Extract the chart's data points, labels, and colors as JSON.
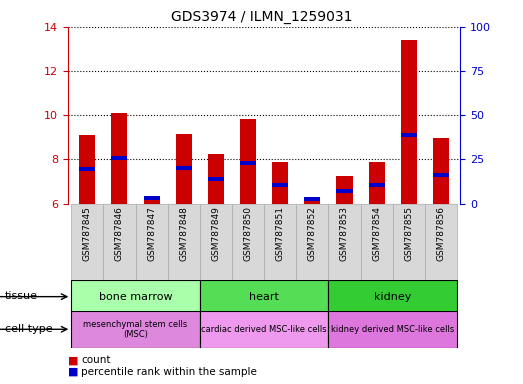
{
  "title": "GDS3974 / ILMN_1259031",
  "samples": [
    "GSM787845",
    "GSM787846",
    "GSM787847",
    "GSM787848",
    "GSM787849",
    "GSM787850",
    "GSM787851",
    "GSM787852",
    "GSM787853",
    "GSM787854",
    "GSM787855",
    "GSM787856"
  ],
  "count_values": [
    9.1,
    10.1,
    6.35,
    9.15,
    8.25,
    9.85,
    7.9,
    6.2,
    7.25,
    7.9,
    13.4,
    8.95
  ],
  "percentile_values": [
    7.55,
    8.05,
    6.25,
    7.6,
    7.1,
    7.85,
    6.85,
    6.2,
    6.55,
    6.85,
    9.1,
    7.3
  ],
  "ylim_left": [
    6,
    14
  ],
  "yticks_left": [
    6,
    8,
    10,
    12,
    14
  ],
  "ylim_right": [
    0,
    100
  ],
  "yticks_right": [
    0,
    25,
    50,
    75,
    100
  ],
  "bar_color": "#cc0000",
  "percentile_color": "#0000cc",
  "bar_width": 0.5,
  "tissue_groups": [
    {
      "label": "bone marrow",
      "start": 0,
      "end": 3,
      "color": "#aaffaa"
    },
    {
      "label": "heart",
      "start": 4,
      "end": 7,
      "color": "#55dd55"
    },
    {
      "label": "kidney",
      "start": 8,
      "end": 11,
      "color": "#33cc33"
    }
  ],
  "cell_type_groups": [
    {
      "label": "mesenchymal stem cells\n(MSC)",
      "start": 0,
      "end": 3,
      "color": "#dd88dd"
    },
    {
      "label": "cardiac derived MSC-like cells",
      "start": 4,
      "end": 7,
      "color": "#ee99ee"
    },
    {
      "label": "kidney derived MSC-like cells",
      "start": 8,
      "end": 11,
      "color": "#dd77dd"
    }
  ],
  "tissue_label": "tissue",
  "cell_type_label": "cell type",
  "legend_count_label": "count",
  "legend_percentile_label": "percentile rank within the sample",
  "tick_color_left": "#cc0000",
  "tick_color_right": "#0000cc",
  "sample_box_color": "#d8d8d8",
  "sample_box_edgecolor": "#aaaaaa"
}
